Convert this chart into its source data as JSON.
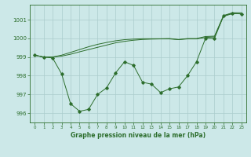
{
  "xlabel": "Graphe pression niveau de la mer (hPa)",
  "background_color": "#cce8e8",
  "line_color": "#2d6e2d",
  "grid_color": "#aacccc",
  "ylim": [
    995.5,
    1001.8
  ],
  "xlim": [
    -0.5,
    23.5
  ],
  "yticks": [
    996,
    997,
    998,
    999,
    1000,
    1001
  ],
  "xticks": [
    0,
    1,
    2,
    3,
    4,
    5,
    6,
    7,
    8,
    9,
    10,
    11,
    12,
    13,
    14,
    15,
    16,
    17,
    18,
    19,
    20,
    21,
    22,
    23
  ],
  "line1": [
    999.1,
    999.0,
    998.95,
    998.1,
    996.5,
    996.1,
    996.2,
    997.0,
    997.35,
    998.15,
    998.75,
    998.55,
    997.65,
    997.55,
    997.1,
    997.3,
    997.4,
    998.0,
    998.75,
    1000.0,
    1000.0,
    1001.2,
    1001.35,
    1001.3
  ],
  "line2": [
    999.1,
    999.0,
    999.0,
    999.05,
    999.15,
    999.28,
    999.4,
    999.52,
    999.64,
    999.76,
    999.84,
    999.9,
    999.94,
    999.96,
    999.97,
    999.97,
    999.93,
    999.97,
    999.97,
    1000.05,
    1000.08,
    1001.18,
    1001.32,
    1001.32
  ],
  "line3": [
    999.1,
    999.0,
    999.0,
    999.1,
    999.25,
    999.4,
    999.55,
    999.68,
    999.78,
    999.87,
    999.93,
    999.96,
    999.98,
    999.98,
    999.98,
    999.99,
    999.94,
    999.99,
    999.99,
    1000.1,
    1000.12,
    1001.22,
    1001.37,
    1001.37
  ]
}
